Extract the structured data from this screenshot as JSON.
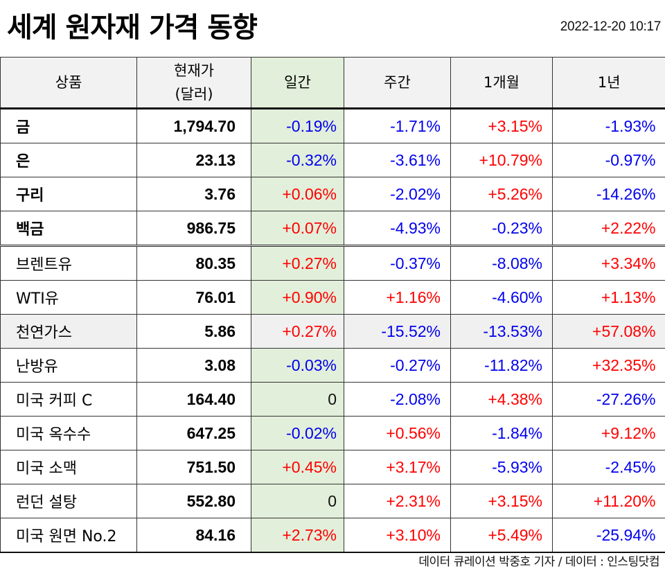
{
  "header": {
    "title": "세계 원자재 가격 동향",
    "timestamp": "2022-12-20 10:17"
  },
  "table": {
    "columns": {
      "product": "상품",
      "price_line1": "현재가",
      "price_line2": "(달러)",
      "daily": "일간",
      "weekly": "주간",
      "monthly": "1개월",
      "yearly": "1년"
    },
    "rows": [
      {
        "name": "금",
        "price": "1,794.70",
        "daily": "-0.19%",
        "weekly": "-1.71%",
        "monthly": "+3.15%",
        "yearly": "-1.93%"
      },
      {
        "name": "은",
        "price": "23.13",
        "daily": "-0.32%",
        "weekly": "-3.61%",
        "monthly": "+10.79%",
        "yearly": "-0.97%"
      },
      {
        "name": "구리",
        "price": "3.76",
        "daily": "+0.06%",
        "weekly": "-2.02%",
        "monthly": "+5.26%",
        "yearly": "-14.26%"
      },
      {
        "name": "백금",
        "price": "986.75",
        "daily": "+0.07%",
        "weekly": "-4.93%",
        "monthly": "-0.23%",
        "yearly": "+2.22%"
      },
      {
        "name": "브렌트유",
        "price": "80.35",
        "daily": "+0.27%",
        "weekly": "-0.37%",
        "monthly": "-8.08%",
        "yearly": "+3.34%"
      },
      {
        "name": "WTI유",
        "price": "76.01",
        "daily": "+0.90%",
        "weekly": "+1.16%",
        "monthly": "-4.60%",
        "yearly": "+1.13%"
      },
      {
        "name": "천연가스",
        "price": "5.86",
        "daily": "+0.27%",
        "weekly": "-15.52%",
        "monthly": "-13.53%",
        "yearly": "+57.08%"
      },
      {
        "name": "난방유",
        "price": "3.08",
        "daily": "-0.03%",
        "weekly": "-0.27%",
        "monthly": "-11.82%",
        "yearly": "+32.35%"
      },
      {
        "name": "미국 커피 C",
        "price": "164.40",
        "daily": "0",
        "weekly": "-2.08%",
        "monthly": "+4.38%",
        "yearly": "-27.26%"
      },
      {
        "name": "미국 옥수수",
        "price": "647.25",
        "daily": "-0.02%",
        "weekly": "+0.56%",
        "monthly": "-1.84%",
        "yearly": "+9.12%"
      },
      {
        "name": "미국 소맥",
        "price": "751.50",
        "daily": "+0.45%",
        "weekly": "+3.17%",
        "monthly": "-5.93%",
        "yearly": "-2.45%"
      },
      {
        "name": "런던 설탕",
        "price": "552.80",
        "daily": "0",
        "weekly": "+2.31%",
        "monthly": "+3.15%",
        "yearly": "+11.20%"
      },
      {
        "name": "미국 원면 No.2",
        "price": "84.16",
        "daily": "+2.73%",
        "weekly": "+3.10%",
        "monthly": "+5.49%",
        "yearly": "-25.94%"
      }
    ]
  },
  "colors": {
    "up": "#ff0000",
    "down": "#0000ee",
    "daily_column_bg": "#e2efda",
    "header_bg": "#f2f2f2",
    "highlight_row_bg": "#f0f0f0"
  },
  "footer": {
    "credit": "데이터 큐레이션 박중호 기자 / 데이터 : 인스팅닷컴"
  }
}
